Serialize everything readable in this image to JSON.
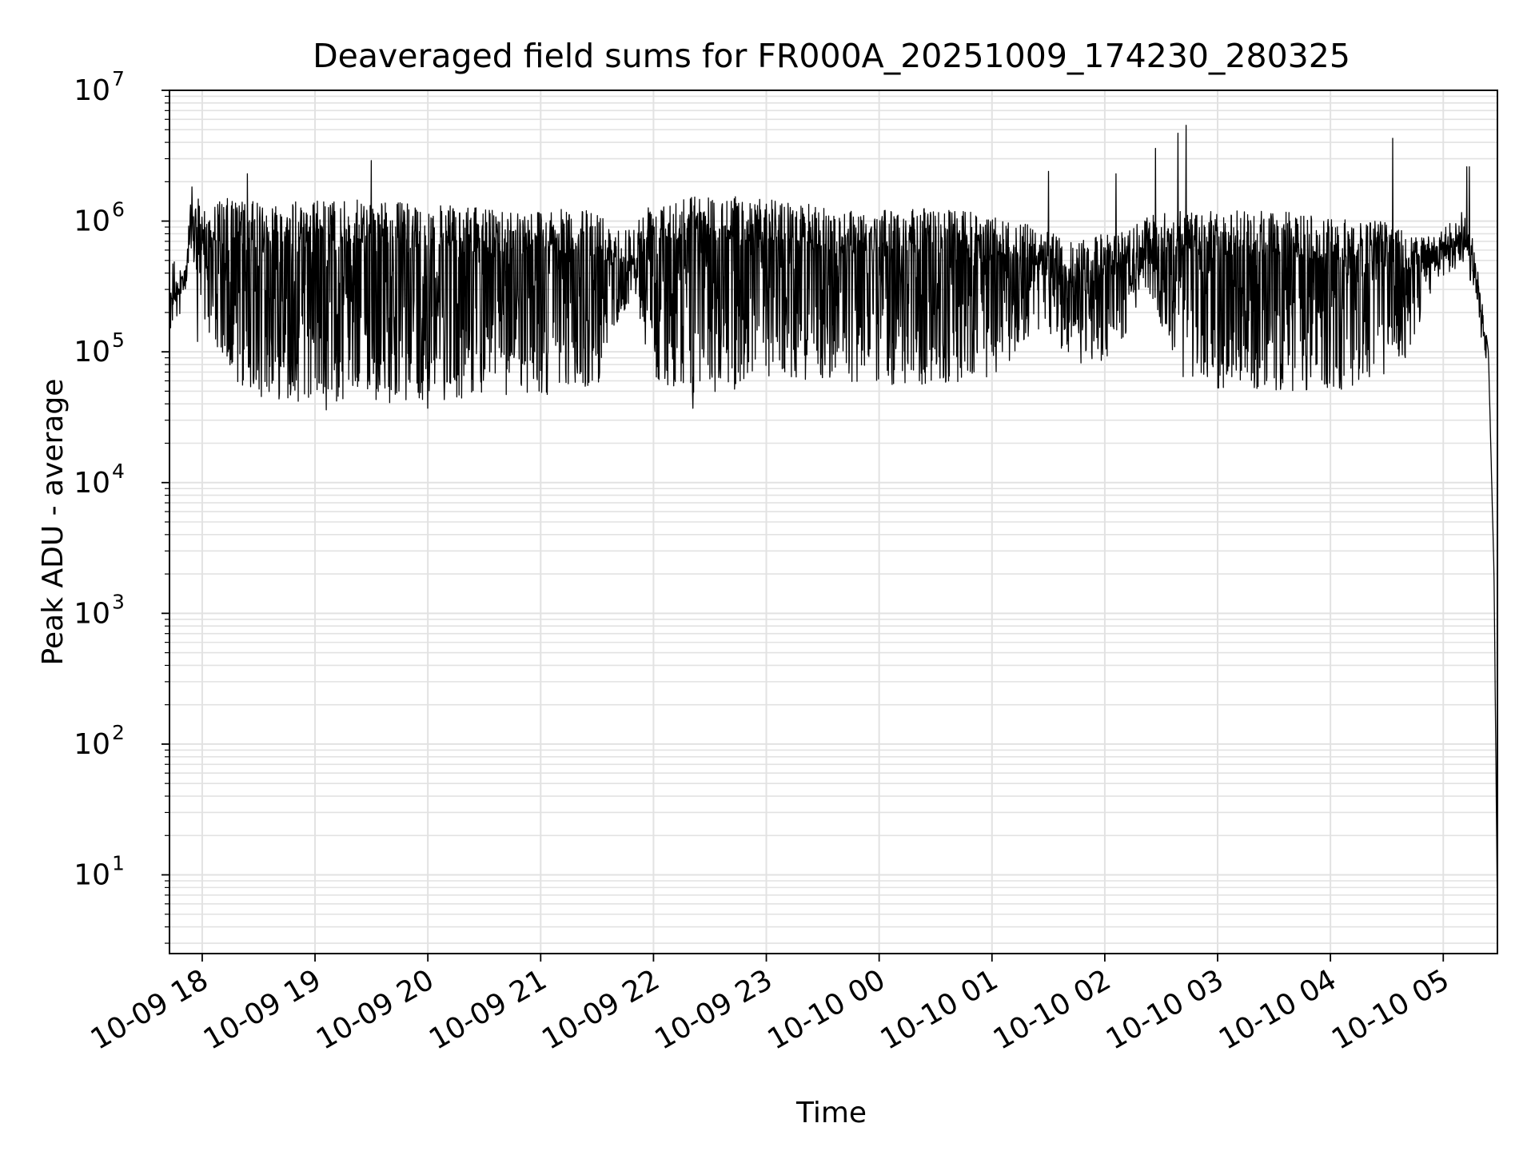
{
  "chart_data": {
    "type": "line",
    "title": "Deaveraged field sums for FR000A_20251009_174230_280325",
    "xlabel": "Time",
    "ylabel": "Peak ADU - average",
    "yscale": "log",
    "ylim": [
      2.5,
      10000000
    ],
    "xlim_hours": [
      17.71,
      29.48
    ],
    "grid": true,
    "x_ticks": [
      {
        "hour": 18,
        "label": "10-09 18"
      },
      {
        "hour": 19,
        "label": "10-09 19"
      },
      {
        "hour": 20,
        "label": "10-09 20"
      },
      {
        "hour": 21,
        "label": "10-09 21"
      },
      {
        "hour": 22,
        "label": "10-09 22"
      },
      {
        "hour": 23,
        "label": "10-09 23"
      },
      {
        "hour": 24,
        "label": "10-10 00"
      },
      {
        "hour": 25,
        "label": "10-10 01"
      },
      {
        "hour": 26,
        "label": "10-10 02"
      },
      {
        "hour": 27,
        "label": "10-10 03"
      },
      {
        "hour": 28,
        "label": "10-10 04"
      },
      {
        "hour": 29,
        "label": "10-10 05"
      }
    ],
    "y_ticks": [
      {
        "exp": 1,
        "base": "10",
        "sup": "1"
      },
      {
        "exp": 2,
        "base": "10",
        "sup": "2"
      },
      {
        "exp": 3,
        "base": "10",
        "sup": "3"
      },
      {
        "exp": 4,
        "base": "10",
        "sup": "4"
      },
      {
        "exp": 5,
        "base": "10",
        "sup": "5"
      },
      {
        "exp": 6,
        "base": "10",
        "sup": "6"
      },
      {
        "exp": 7,
        "base": "10",
        "sup": "7"
      }
    ],
    "series": [
      {
        "name": "field sums",
        "color": "#000000",
        "envelope_note": "dense sampled signal; envelope estimated from image",
        "envelope": [
          {
            "hour": 17.71,
            "upper": 300000,
            "lower": 210000
          },
          {
            "hour": 17.85,
            "upper": 500000,
            "lower": 240000
          },
          {
            "hour": 17.9,
            "upper": 1900000,
            "lower": 250000
          },
          {
            "hour": 18.0,
            "upper": 1300000,
            "lower": 200000
          },
          {
            "hour": 18.2,
            "upper": 1500000,
            "lower": 60000
          },
          {
            "hour": 18.5,
            "upper": 1400000,
            "lower": 45000
          },
          {
            "hour": 19.0,
            "upper": 1450000,
            "lower": 40000
          },
          {
            "hour": 19.5,
            "upper": 1450000,
            "lower": 40000
          },
          {
            "hour": 20.0,
            "upper": 1350000,
            "lower": 42000
          },
          {
            "hour": 20.5,
            "upper": 1250000,
            "lower": 45000
          },
          {
            "hour": 21.0,
            "upper": 1250000,
            "lower": 45000
          },
          {
            "hour": 21.5,
            "upper": 1200000,
            "lower": 55000
          },
          {
            "hour": 21.8,
            "upper": 900000,
            "lower": 250000
          },
          {
            "hour": 22.0,
            "upper": 1600000,
            "lower": 60000
          },
          {
            "hour": 22.5,
            "upper": 1600000,
            "lower": 45000
          },
          {
            "hour": 23.0,
            "upper": 1500000,
            "lower": 55000
          },
          {
            "hour": 23.5,
            "upper": 1300000,
            "lower": 60000
          },
          {
            "hour": 24.0,
            "upper": 1200000,
            "lower": 55000
          },
          {
            "hour": 24.5,
            "upper": 1300000,
            "lower": 55000
          },
          {
            "hour": 25.0,
            "upper": 1100000,
            "lower": 60000
          },
          {
            "hour": 25.4,
            "upper": 900000,
            "lower": 150000
          },
          {
            "hour": 25.7,
            "upper": 700000,
            "lower": 80000
          },
          {
            "hour": 26.0,
            "upper": 800000,
            "lower": 80000
          },
          {
            "hour": 26.4,
            "upper": 1100000,
            "lower": 250000
          },
          {
            "hour": 26.7,
            "upper": 1200000,
            "lower": 60000
          },
          {
            "hour": 27.0,
            "upper": 1200000,
            "lower": 50000
          },
          {
            "hour": 27.5,
            "upper": 1200000,
            "lower": 50000
          },
          {
            "hour": 28.0,
            "upper": 1100000,
            "lower": 50000
          },
          {
            "hour": 28.5,
            "upper": 1000000,
            "lower": 55000
          },
          {
            "hour": 28.7,
            "upper": 900000,
            "lower": 100000
          },
          {
            "hour": 28.9,
            "upper": 800000,
            "lower": 300000
          },
          {
            "hour": 29.2,
            "upper": 1000000,
            "lower": 500000
          },
          {
            "hour": 29.3,
            "upper": 500000,
            "lower": 200000
          },
          {
            "hour": 29.4,
            "upper": 100000,
            "lower": 50000
          },
          {
            "hour": 29.45,
            "upper": 2000,
            "lower": 500
          },
          {
            "hour": 29.48,
            "upper": 5,
            "lower": 5
          }
        ],
        "spikes": [
          {
            "hour": 18.4,
            "value": 2300000
          },
          {
            "hour": 19.5,
            "value": 2900000
          },
          {
            "hour": 25.5,
            "value": 2400000
          },
          {
            "hour": 26.1,
            "value": 2300000
          },
          {
            "hour": 26.45,
            "value": 3600000
          },
          {
            "hour": 26.65,
            "value": 4700000
          },
          {
            "hour": 26.72,
            "value": 5400000
          },
          {
            "hour": 28.55,
            "value": 4300000
          },
          {
            "hour": 29.21,
            "value": 2600000
          },
          {
            "hour": 29.23,
            "value": 2600000
          }
        ],
        "dips": [
          {
            "hour": 17.96,
            "value": 120000
          },
          {
            "hour": 19.1,
            "value": 36000
          },
          {
            "hour": 20.0,
            "value": 37000
          },
          {
            "hour": 22.35,
            "value": 37000
          }
        ]
      }
    ]
  }
}
